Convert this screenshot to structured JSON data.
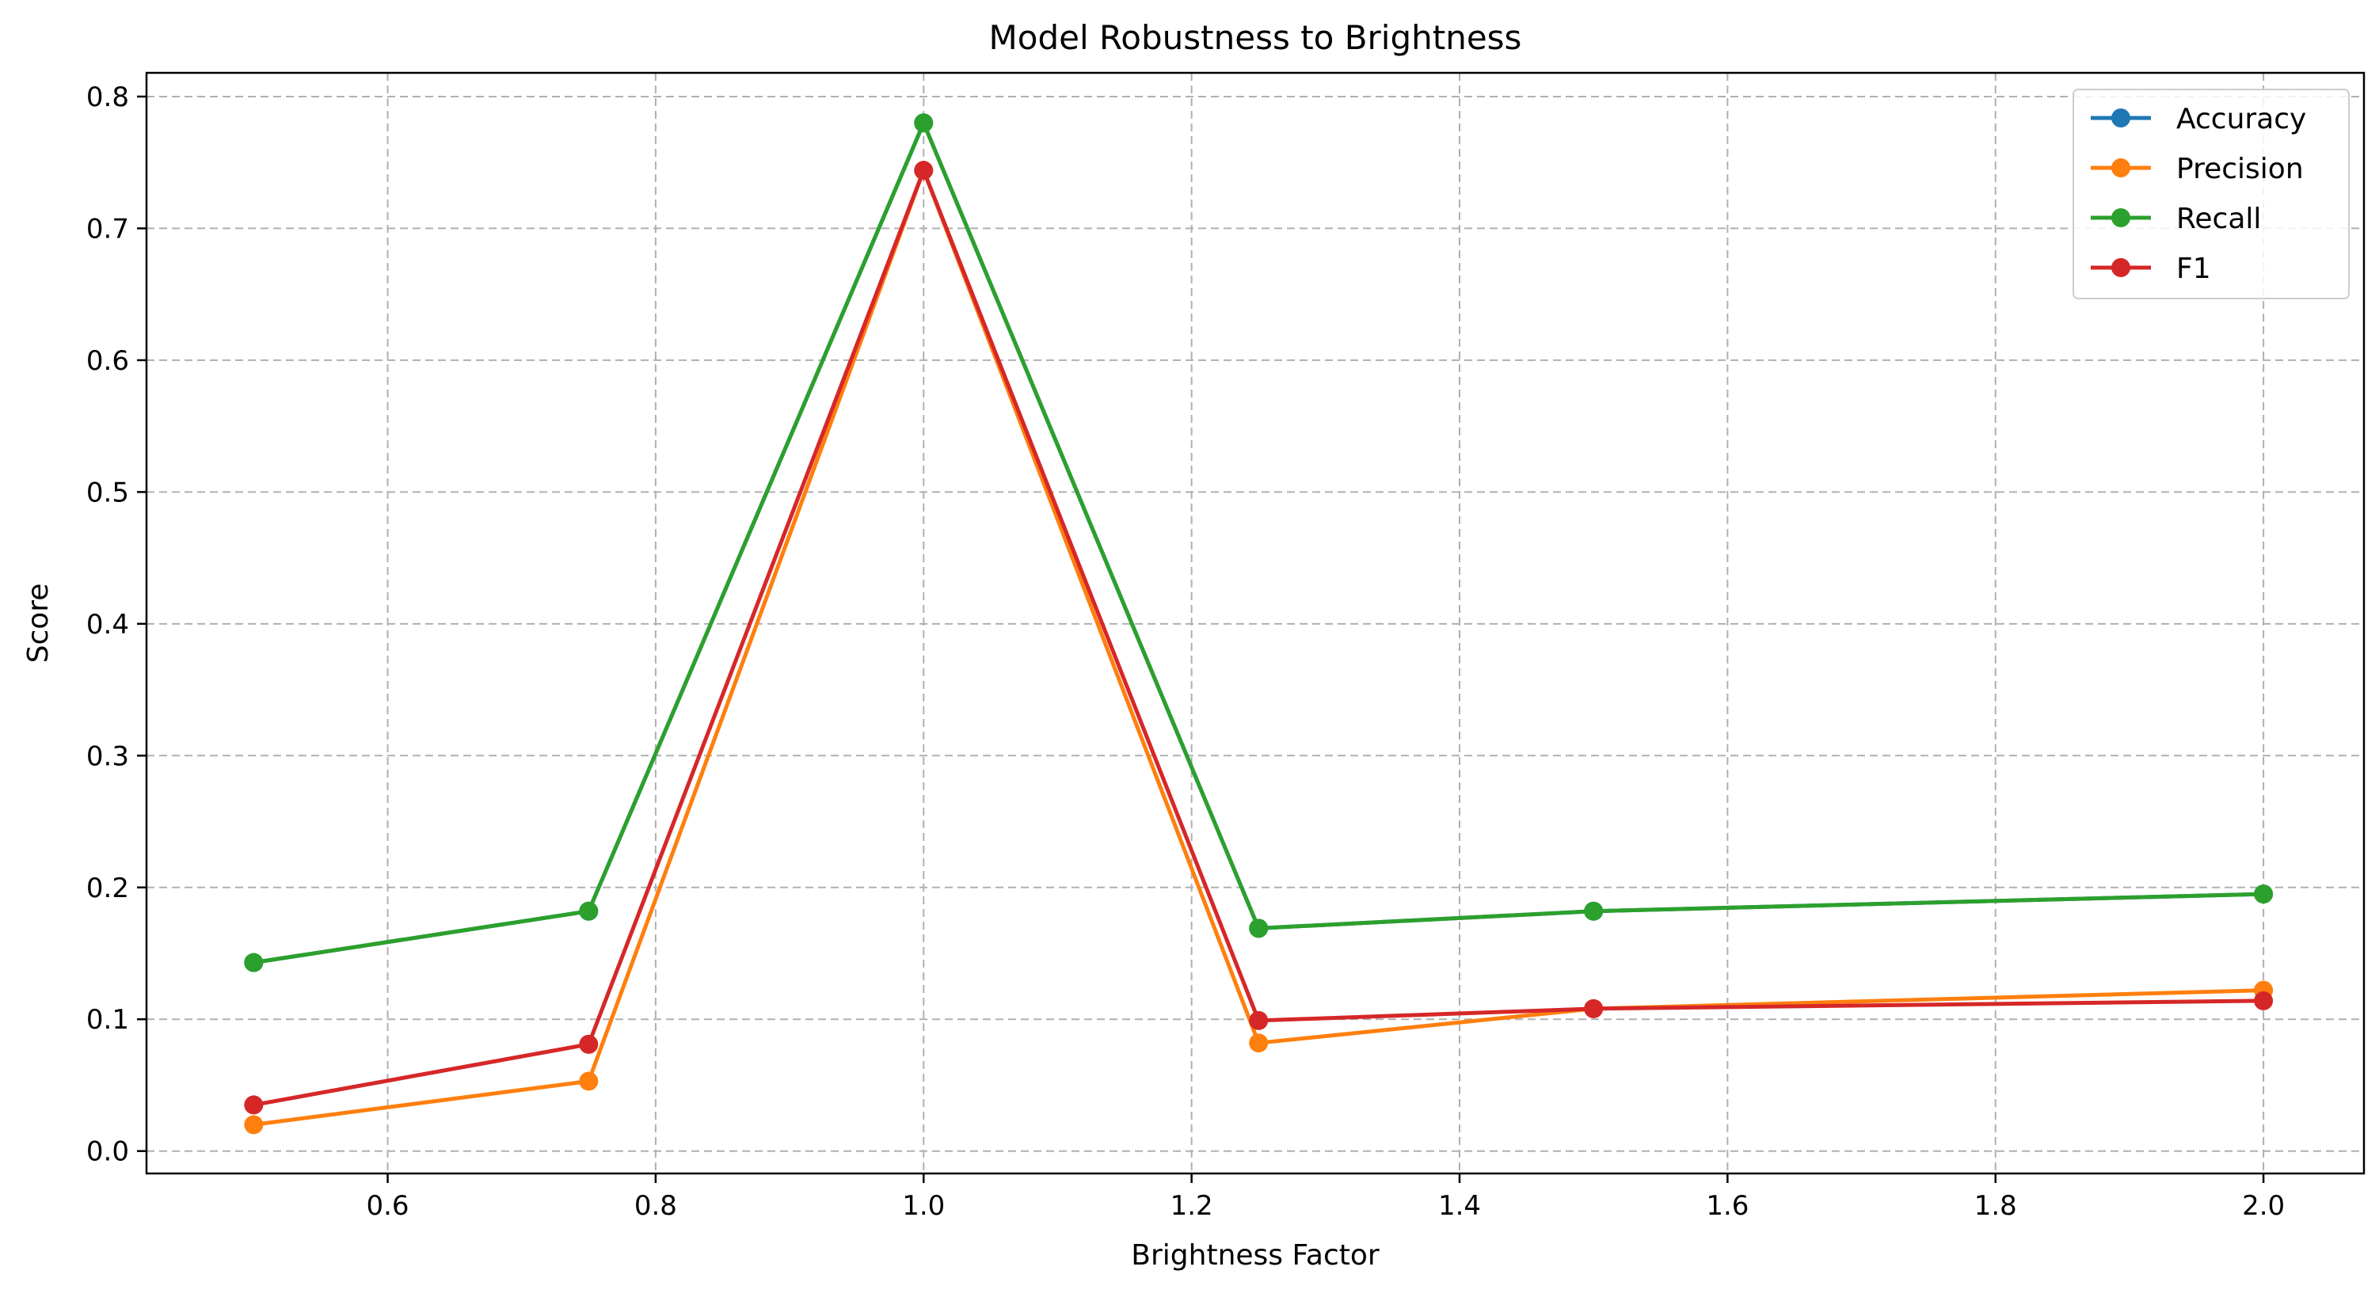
{
  "chart_data": {
    "type": "line",
    "title": "Model Robustness to Brightness",
    "xlabel": "Brightness Factor",
    "ylabel": "Score",
    "xlim": [
      0.42,
      2.075
    ],
    "ylim": [
      -0.017,
      0.818
    ],
    "xticks": [
      0.6,
      0.8,
      1.0,
      1.2,
      1.4,
      1.6,
      1.8,
      2.0
    ],
    "xtick_labels": [
      "0.6",
      "0.8",
      "1.0",
      "1.2",
      "1.4",
      "1.6",
      "1.8",
      "2.0"
    ],
    "yticks": [
      0.0,
      0.1,
      0.2,
      0.3,
      0.4,
      0.5,
      0.6,
      0.7,
      0.8
    ],
    "ytick_labels": [
      "0.0",
      "0.1",
      "0.2",
      "0.3",
      "0.4",
      "0.5",
      "0.6",
      "0.7",
      "0.8"
    ],
    "grid": true,
    "legend_position": "top-right",
    "x": [
      0.5,
      0.75,
      1.0,
      1.25,
      1.5,
      2.0
    ],
    "series": [
      {
        "name": "Accuracy",
        "color": "#1f77b4",
        "values": [
          0.143,
          0.182,
          0.78,
          0.169,
          0.182,
          0.195
        ]
      },
      {
        "name": "Precision",
        "color": "#ff7f0e",
        "values": [
          0.02,
          0.053,
          0.744,
          0.082,
          0.108,
          0.122
        ]
      },
      {
        "name": "Recall",
        "color": "#2ca02c",
        "values": [
          0.143,
          0.182,
          0.78,
          0.169,
          0.182,
          0.195
        ]
      },
      {
        "name": "F1",
        "color": "#d62728",
        "values": [
          0.035,
          0.081,
          0.744,
          0.099,
          0.108,
          0.114
        ]
      }
    ]
  }
}
